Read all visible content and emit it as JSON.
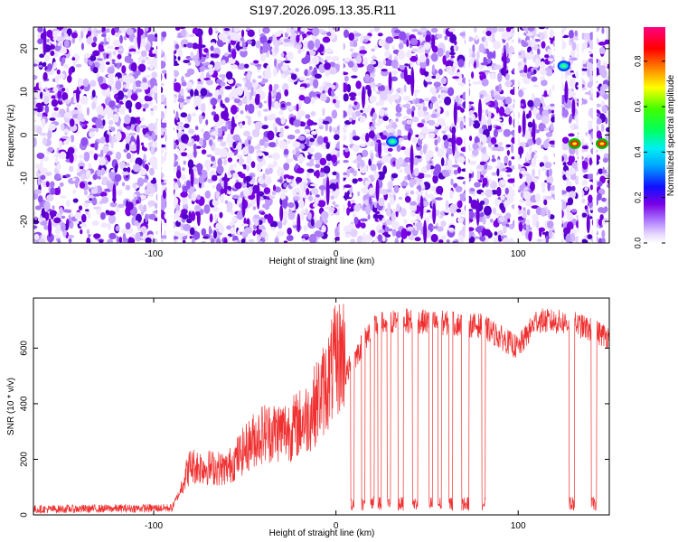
{
  "title": "S197.2026.095.13.35.R11",
  "colors": {
    "spectral": "#7a00e6",
    "snr_line": "#f03030"
  },
  "chart_data": [
    {
      "type": "heatmap",
      "xlabel": "Height of straight line (km)",
      "ylabel": "Frequency (Hz)",
      "xlim": [
        -166,
        150
      ],
      "ylim": [
        -25,
        25
      ],
      "xticks": [
        -100,
        0,
        100
      ],
      "yticks": [
        -20,
        -10,
        0,
        10,
        20
      ],
      "colorbar": {
        "label": "Normalized spectral amplitude",
        "range": [
          0,
          0.95
        ],
        "ticks": [
          0.0,
          0.2,
          0.4,
          0.6,
          0.8
        ],
        "tick_labels": [
          "0.0",
          "0.2",
          "0.4",
          "0.6",
          "0.8"
        ],
        "colormap": "white-purple-blue-cyan-green-yellow-red-magenta"
      },
      "gaps_km": [
        [
          -93,
          -89
        ],
        [
          -98,
          -96
        ],
        [
          2,
          4
        ],
        [
          71,
          73
        ],
        [
          98,
          100
        ],
        [
          120,
          124
        ],
        [
          133,
          135
        ],
        [
          141,
          143
        ]
      ],
      "bright_spots": [
        {
          "x": 31,
          "y": -1.5,
          "value": 0.45
        },
        {
          "x": 125,
          "y": 16,
          "value": 0.45
        },
        {
          "x": 131,
          "y": -2,
          "value": 0.95
        },
        {
          "x": 146,
          "y": -2,
          "value": 0.95
        }
      ]
    },
    {
      "type": "line",
      "xlabel": "Height of straight line (km)",
      "ylabel": "SNR (10 * v/v)",
      "xlim": [
        -166,
        150
      ],
      "ylim": [
        0,
        780
      ],
      "xticks": [
        -100,
        0,
        100
      ],
      "yticks": [
        0,
        200,
        400,
        600
      ],
      "series": [
        {
          "profile": [
            [
              -166,
              20
            ],
            [
              -90,
              25
            ],
            [
              -85,
              90
            ],
            [
              -80,
              150
            ],
            [
              -60,
              140
            ],
            [
              -45,
              230
            ],
            [
              -40,
              250
            ],
            [
              -25,
              260
            ],
            [
              -15,
              300
            ],
            [
              -5,
              400
            ],
            [
              0,
              470
            ],
            [
              5,
              500
            ],
            [
              10,
              560
            ],
            [
              15,
              620
            ],
            [
              20,
              680
            ],
            [
              35,
              700
            ],
            [
              60,
              690
            ],
            [
              80,
              680
            ],
            [
              90,
              640
            ],
            [
              100,
              600
            ],
            [
              110,
              700
            ],
            [
              130,
              690
            ],
            [
              150,
              640
            ]
          ],
          "dropouts_km": [
            [
              8,
              10
            ],
            [
              14,
              16
            ],
            [
              19,
              21
            ],
            [
              23,
              25
            ],
            [
              28,
              30
            ],
            [
              34,
              37
            ],
            [
              42,
              45
            ],
            [
              51,
              53
            ],
            [
              56,
              58
            ],
            [
              62,
              64
            ],
            [
              69,
              73
            ],
            [
              80,
              82
            ],
            [
              128,
              131
            ],
            [
              140,
              143
            ]
          ]
        }
      ]
    }
  ]
}
